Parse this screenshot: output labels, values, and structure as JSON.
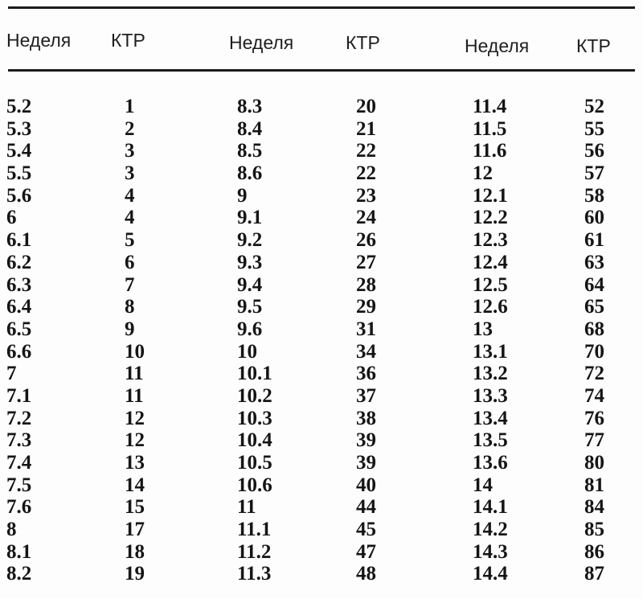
{
  "table": {
    "columns": [
      "Неделя",
      "КТР",
      "Неделя",
      "КТР",
      "Неделя",
      "КТР"
    ],
    "rows": [
      [
        "5.2",
        "1",
        "8.3",
        "20",
        "11.4",
        "52"
      ],
      [
        "5.3",
        "2",
        "8.4",
        "21",
        "11.5",
        "55"
      ],
      [
        "5.4",
        "3",
        "8.5",
        "22",
        "11.6",
        "56"
      ],
      [
        "5.5",
        "3",
        "8.6",
        "22",
        "12",
        "57"
      ],
      [
        "5.6",
        "4",
        "9",
        "23",
        "12.1",
        "58"
      ],
      [
        "6",
        "4",
        "9.1",
        "24",
        "12.2",
        "60"
      ],
      [
        "6.1",
        "5",
        "9.2",
        "26",
        "12.3",
        "61"
      ],
      [
        "6.2",
        "6",
        "9.3",
        "27",
        "12.4",
        "63"
      ],
      [
        "6.3",
        "7",
        "9.4",
        "28",
        "12.5",
        "64"
      ],
      [
        "6.4",
        "8",
        "9.5",
        "29",
        "12.6",
        "65"
      ],
      [
        "6.5",
        "9",
        "9.6",
        "31",
        "13",
        "68"
      ],
      [
        "6.6",
        "10",
        "10",
        "34",
        "13.1",
        "70"
      ],
      [
        "7",
        "11",
        "10.1",
        "36",
        "13.2",
        "72"
      ],
      [
        "7.1",
        "11",
        "10.2",
        "37",
        "13.3",
        "74"
      ],
      [
        "7.2",
        "12",
        "10.3",
        "38",
        "13.4",
        "76"
      ],
      [
        "7.3",
        "12",
        "10.4",
        "39",
        "13.5",
        "77"
      ],
      [
        "7.4",
        "13",
        "10.5",
        "39",
        "13.6",
        "80"
      ],
      [
        "7.5",
        "14",
        "10.6",
        "40",
        "14",
        "81"
      ],
      [
        "7.6",
        "15",
        "11",
        "44",
        "14.1",
        "84"
      ],
      [
        "8",
        "17",
        "11.1",
        "45",
        "14.2",
        "85"
      ],
      [
        "8.1",
        "18",
        "11.2",
        "47",
        "14.3",
        "86"
      ],
      [
        "8.2",
        "19",
        "11.3",
        "48",
        "14.4",
        "87"
      ]
    ],
    "colors": {
      "line": "#1b1b1b",
      "header_text": "#1f1f1f",
      "data_text": "#151515",
      "background": "#fdfdfd"
    }
  }
}
